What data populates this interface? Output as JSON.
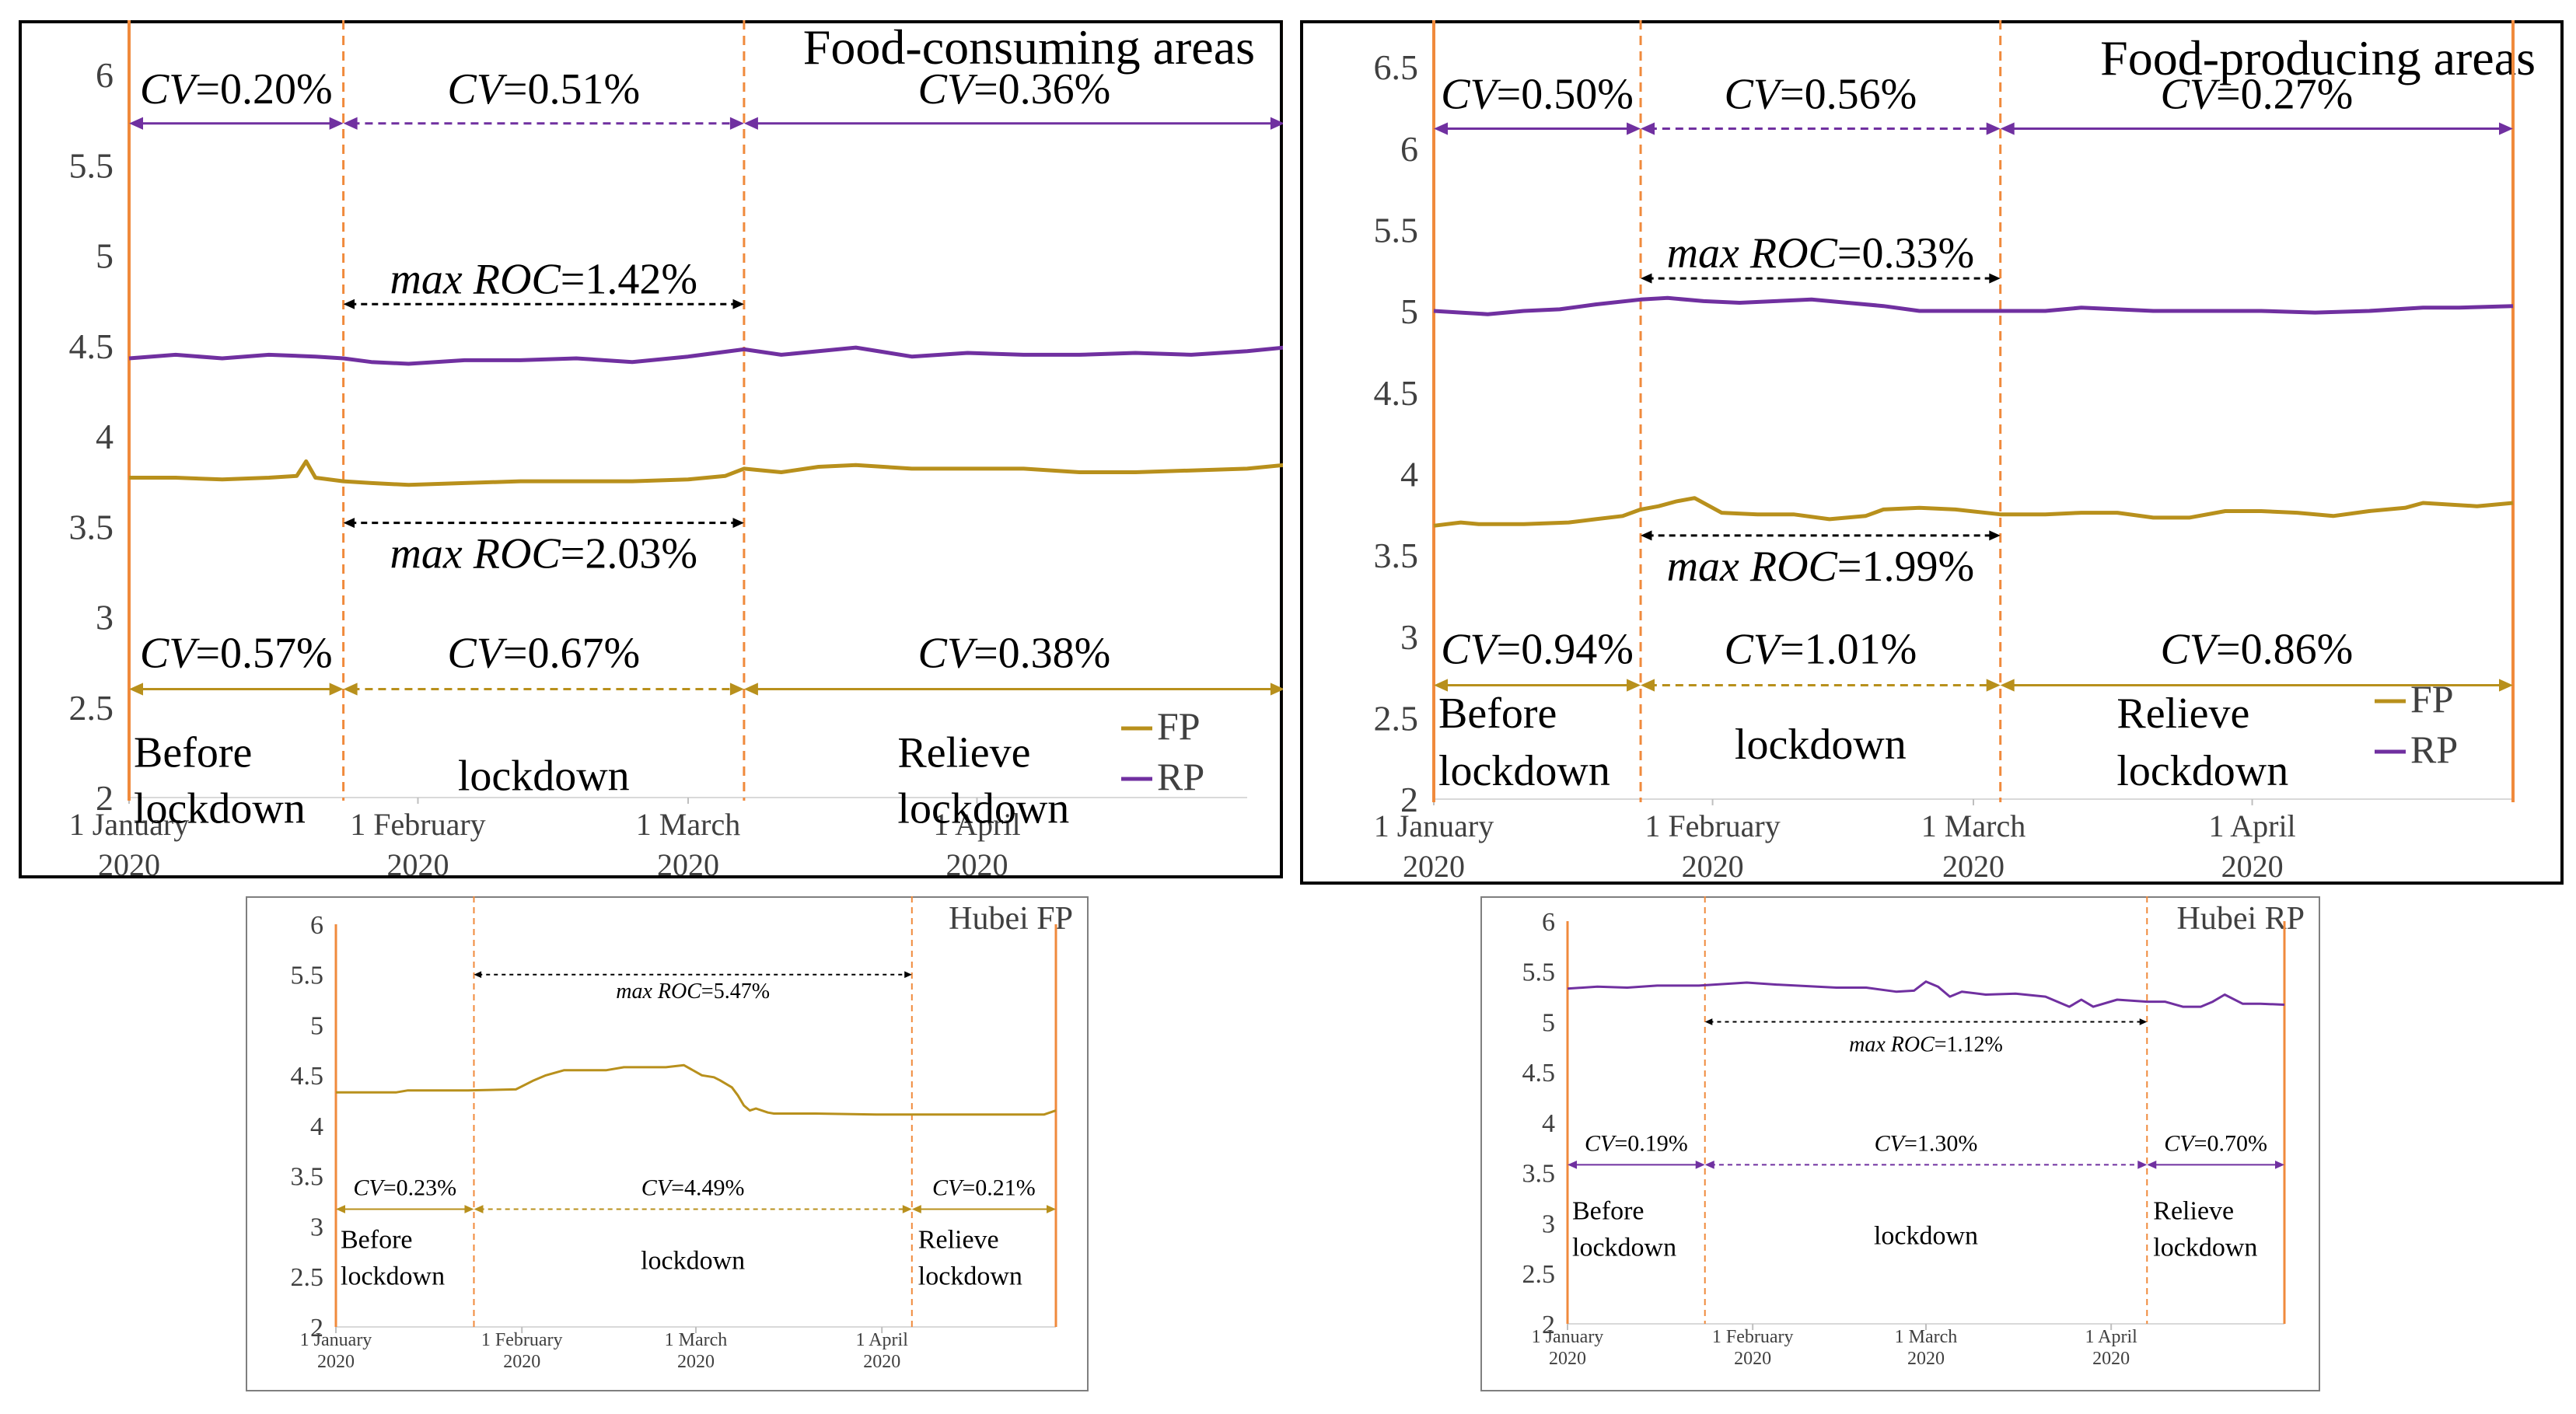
{
  "colors": {
    "fp": "#b8901c",
    "rp": "#7030a0",
    "boundary": "#f08a3c",
    "text": "#000000",
    "tick": "#404040",
    "frame": "#000000",
    "smallFrame": "#7f7f7f"
  },
  "chart_data": [
    {
      "type": "line",
      "title": "Food-consuming areas",
      "ylim": [
        2,
        6
      ],
      "yticks": [
        "2",
        "2.5",
        "3",
        "3.5",
        "4",
        "4.5",
        "5",
        "5.5",
        "6"
      ],
      "xlim": [
        0,
        120
      ],
      "xticks": [
        {
          "day": 0,
          "line1": "1 January",
          "line2": "2020"
        },
        {
          "day": 31,
          "line1": "1 February",
          "line2": "2020"
        },
        {
          "day": 60,
          "line1": "1 March",
          "line2": "2020"
        },
        {
          "day": 91,
          "line1": "1 April",
          "line2": "2020"
        }
      ],
      "boundaries": [
        0,
        23,
        66,
        124
      ],
      "legend": [
        {
          "key": "fp",
          "label": "FP"
        },
        {
          "key": "rp",
          "label": "RP"
        }
      ],
      "legend_position": "bottom-right",
      "series": [
        {
          "name": "RP",
          "key": "rp",
          "x": [
            0,
            5,
            10,
            15,
            20,
            23,
            26,
            30,
            36,
            42,
            48,
            54,
            60,
            66,
            70,
            74,
            78,
            84,
            90,
            96,
            102,
            108,
            114,
            120,
            124
          ],
          "y": [
            4.43,
            4.45,
            4.43,
            4.45,
            4.44,
            4.43,
            4.41,
            4.4,
            4.42,
            4.42,
            4.43,
            4.41,
            4.44,
            4.48,
            4.45,
            4.47,
            4.49,
            4.44,
            4.46,
            4.45,
            4.45,
            4.46,
            4.45,
            4.47,
            4.49
          ]
        },
        {
          "name": "FP",
          "key": "fp",
          "x": [
            0,
            5,
            10,
            15,
            18,
            19,
            20,
            23,
            26,
            30,
            36,
            42,
            48,
            54,
            60,
            64,
            66,
            70,
            74,
            78,
            84,
            90,
            96,
            102,
            108,
            114,
            120,
            124
          ],
          "y": [
            3.77,
            3.77,
            3.76,
            3.77,
            3.78,
            3.86,
            3.77,
            3.75,
            3.74,
            3.73,
            3.74,
            3.75,
            3.75,
            3.75,
            3.76,
            3.78,
            3.82,
            3.8,
            3.83,
            3.84,
            3.82,
            3.82,
            3.82,
            3.8,
            3.8,
            3.81,
            3.82,
            3.84
          ]
        }
      ],
      "rp_intervals": [
        {
          "text": "CV=0.20%",
          "y": 5.73
        },
        {
          "text": "CV=0.51%",
          "y": 5.73
        },
        {
          "text": "CV=0.36%",
          "y": 5.73
        }
      ],
      "fp_intervals": [
        {
          "text": "CV=0.57%",
          "y": 2.6
        },
        {
          "text": "CV=0.67%",
          "y": 2.6
        },
        {
          "text": "CV=0.38%",
          "y": 2.6
        }
      ],
      "rp_roc": {
        "text": "max ROC=1.42%",
        "y": 4.73
      },
      "fp_roc": {
        "text": "max ROC=2.03%",
        "y": 3.52
      },
      "phases": [
        "Before lockdown",
        "lockdown",
        "Relieve lockdown"
      ]
    },
    {
      "type": "line",
      "title": "Food-producing areas",
      "ylim": [
        2,
        6.5
      ],
      "yticks": [
        "2",
        "2.5",
        "3",
        "3.5",
        "4",
        "4.5",
        "5",
        "5.5",
        "6",
        "6.5"
      ],
      "xlim": [
        0,
        120
      ],
      "xticks": [
        {
          "day": 0,
          "line1": "1 January",
          "line2": "2020"
        },
        {
          "day": 31,
          "line1": "1 February",
          "line2": "2020"
        },
        {
          "day": 60,
          "line1": "1 March",
          "line2": "2020"
        },
        {
          "day": 91,
          "line1": "1 April",
          "line2": "2020"
        }
      ],
      "boundaries": [
        0,
        23,
        63,
        120
      ],
      "legend": [
        {
          "key": "fp",
          "label": "FP"
        },
        {
          "key": "rp",
          "label": "RP"
        }
      ],
      "legend_position": "bottom-right",
      "series": [
        {
          "name": "RP",
          "key": "rp",
          "x": [
            0,
            3,
            6,
            10,
            14,
            18,
            23,
            26,
            30,
            34,
            38,
            42,
            46,
            50,
            54,
            58,
            63,
            68,
            72,
            76,
            80,
            86,
            92,
            98,
            104,
            110,
            114,
            120
          ],
          "y": [
            5.0,
            4.99,
            4.98,
            5.0,
            5.01,
            5.04,
            5.07,
            5.08,
            5.06,
            5.05,
            5.06,
            5.07,
            5.05,
            5.03,
            5.0,
            5.0,
            5.0,
            5.0,
            5.02,
            5.01,
            5.0,
            5.0,
            5.0,
            4.99,
            5.0,
            5.02,
            5.02,
            5.03
          ]
        },
        {
          "name": "FP",
          "key": "fp",
          "x": [
            0,
            3,
            5,
            10,
            15,
            18,
            21,
            23,
            25,
            27,
            29,
            32,
            36,
            40,
            44,
            48,
            50,
            54,
            58,
            63,
            68,
            72,
            76,
            80,
            84,
            88,
            92,
            96,
            100,
            104,
            108,
            110,
            113,
            116,
            120
          ],
          "y": [
            3.68,
            3.7,
            3.69,
            3.69,
            3.7,
            3.72,
            3.74,
            3.78,
            3.8,
            3.83,
            3.85,
            3.76,
            3.75,
            3.75,
            3.72,
            3.74,
            3.78,
            3.79,
            3.78,
            3.75,
            3.75,
            3.76,
            3.76,
            3.73,
            3.73,
            3.77,
            3.77,
            3.76,
            3.74,
            3.77,
            3.79,
            3.82,
            3.81,
            3.8,
            3.82
          ]
        }
      ],
      "rp_intervals": [
        {
          "text": "CV=0.50%",
          "y": 6.12
        },
        {
          "text": "CV=0.56%",
          "y": 6.12
        },
        {
          "text": "CV=0.27%",
          "y": 6.12
        }
      ],
      "fp_intervals": [
        {
          "text": "CV=0.94%",
          "y": 2.7
        },
        {
          "text": "CV=1.01%",
          "y": 2.7
        },
        {
          "text": "CV=0.86%",
          "y": 2.7
        }
      ],
      "rp_roc": {
        "text": "max ROC=0.33%",
        "y": 5.2
      },
      "fp_roc": {
        "text": "max ROC=1.99%",
        "y": 3.62
      },
      "phases": [
        "Before lockdown",
        "lockdown",
        "Relieve lockdown"
      ]
    },
    {
      "type": "line",
      "title": "Hubei FP",
      "ylim": [
        2,
        6
      ],
      "yticks": [
        "2",
        "2.5",
        "3",
        "3.5",
        "4",
        "4.5",
        "5",
        "5.5",
        "6"
      ],
      "xlim": [
        0,
        120
      ],
      "xticks": [
        {
          "day": 0,
          "line1": "1 January",
          "line2": "2020"
        },
        {
          "day": 31,
          "line1": "1 February",
          "line2": "2020"
        },
        {
          "day": 60,
          "line1": "1 March",
          "line2": "2020"
        },
        {
          "day": 91,
          "line1": "1 April",
          "line2": "2020"
        }
      ],
      "boundaries": [
        0,
        23,
        96,
        120
      ],
      "series": [
        {
          "name": "FP",
          "key": "fp",
          "x": [
            0,
            10,
            12,
            22,
            30,
            33,
            35,
            38,
            45,
            48,
            55,
            58,
            61,
            63,
            64,
            66,
            67,
            68,
            69,
            70,
            72,
            73,
            80,
            90,
            100,
            110,
            118,
            120
          ],
          "y": [
            4.33,
            4.33,
            4.35,
            4.35,
            4.36,
            4.45,
            4.5,
            4.55,
            4.55,
            4.58,
            4.58,
            4.6,
            4.5,
            4.48,
            4.45,
            4.38,
            4.3,
            4.2,
            4.15,
            4.17,
            4.13,
            4.12,
            4.12,
            4.11,
            4.11,
            4.11,
            4.11,
            4.15
          ]
        }
      ],
      "fp_intervals": [
        {
          "text": "CV=0.23%",
          "y": 3.17
        },
        {
          "text": "CV=4.49%",
          "y": 3.17
        },
        {
          "text": "CV=0.21%",
          "y": 3.17
        }
      ],
      "roc": {
        "text": "max ROC=5.47%",
        "y": 5.5
      },
      "phases": [
        "Before lockdown",
        "lockdown",
        "Relieve lockdown"
      ]
    },
    {
      "type": "line",
      "title": "Hubei RP",
      "ylim": [
        2,
        6
      ],
      "yticks": [
        "2",
        "2.5",
        "3",
        "3.5",
        "4",
        "4.5",
        "5",
        "5.5",
        "6"
      ],
      "xlim": [
        0,
        120
      ],
      "xticks": [
        {
          "day": 0,
          "line1": "1 January",
          "line2": "2020"
        },
        {
          "day": 31,
          "line1": "1 February",
          "line2": "2020"
        },
        {
          "day": 60,
          "line1": "1 March",
          "line2": "2020"
        },
        {
          "day": 91,
          "line1": "1 April",
          "line2": "2020"
        }
      ],
      "boundaries": [
        0,
        23,
        97,
        120
      ],
      "series": [
        {
          "name": "RP",
          "key": "rp",
          "x": [
            0,
            5,
            10,
            15,
            22,
            30,
            35,
            45,
            50,
            55,
            58,
            60,
            62,
            64,
            66,
            70,
            75,
            80,
            84,
            86,
            88,
            92,
            97,
            100,
            103,
            106,
            108,
            110,
            113,
            116,
            120
          ],
          "y": [
            5.33,
            5.35,
            5.34,
            5.36,
            5.36,
            5.39,
            5.37,
            5.34,
            5.34,
            5.3,
            5.31,
            5.4,
            5.35,
            5.25,
            5.3,
            5.27,
            5.28,
            5.25,
            5.15,
            5.22,
            5.15,
            5.22,
            5.2,
            5.2,
            5.15,
            5.15,
            5.2,
            5.27,
            5.18,
            5.18,
            5.17
          ]
        }
      ],
      "rp_intervals": [
        {
          "text": "CV=0.19%",
          "y": 3.58
        },
        {
          "text": "CV=1.30%",
          "y": 3.58
        },
        {
          "text": "CV=0.70%",
          "y": 3.58
        }
      ],
      "roc": {
        "text": "max ROC=1.12%",
        "y": 5.0
      },
      "phases": [
        "Before lockdown",
        "lockdown",
        "Relieve lockdown"
      ]
    }
  ]
}
